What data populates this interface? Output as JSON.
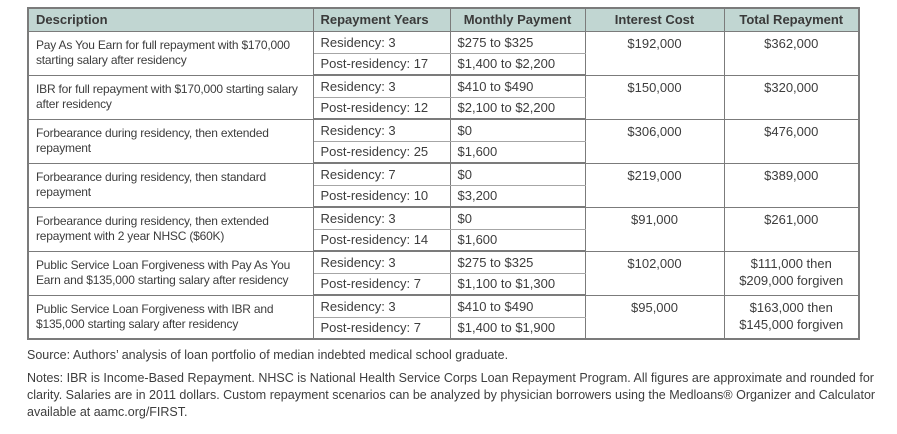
{
  "colors": {
    "header_background": "#c1d6d2",
    "table_border": "#7b7b7b",
    "subrow_divider": "#a6a6a6",
    "text": "#3d3d3d"
  },
  "table": {
    "headers": [
      "Description",
      "Repayment Years",
      "Monthly Payment",
      "Interest Cost",
      "Total Repayment"
    ],
    "rows": [
      {
        "description": "Pay As You Earn for full repayment with $170,000 starting salary after residency",
        "residency_years": "Residency: 3",
        "post_residency_years": "Post-residency: 17",
        "residency_payment": "$275 to $325",
        "post_residency_payment": "$1,400 to $2,200",
        "interest_cost": "$192,000",
        "total_repayment": "$362,000"
      },
      {
        "description": "IBR for full repayment with $170,000 starting salary after residency",
        "residency_years": "Residency: 3",
        "post_residency_years": "Post-residency: 12",
        "residency_payment": "$410 to $490",
        "post_residency_payment": "$2,100 to $2,200",
        "interest_cost": "$150,000",
        "total_repayment": "$320,000"
      },
      {
        "description": "Forbearance during residency, then extended repayment",
        "residency_years": "Residency: 3",
        "post_residency_years": "Post-residency: 25",
        "residency_payment": "$0",
        "post_residency_payment": "$1,600",
        "interest_cost": "$306,000",
        "total_repayment": "$476,000"
      },
      {
        "description": "Forbearance during residency, then standard repayment",
        "residency_years": "Residency: 7",
        "post_residency_years": "Post-residency: 10",
        "residency_payment": "$0",
        "post_residency_payment": "$3,200",
        "interest_cost": "$219,000",
        "total_repayment": "$389,000"
      },
      {
        "description": "Forbearance during residency, then extended repayment with 2 year NHSC ($60K)",
        "residency_years": "Residency: 3",
        "post_residency_years": "Post-residency: 14",
        "residency_payment": "$0",
        "post_residency_payment": "$1,600",
        "interest_cost": "$91,000",
        "total_repayment": "$261,000"
      },
      {
        "description": "Public Service Loan Forgiveness with Pay As You Earn and $135,000 starting salary after residency",
        "residency_years": "Residency: 3",
        "post_residency_years": "Post-residency: 7",
        "residency_payment": "$275 to $325",
        "post_residency_payment": "$1,100 to $1,300",
        "interest_cost": "$102,000",
        "total_repayment": "$111,000 then $209,000 forgiven"
      },
      {
        "description": "Public Service Loan Forgiveness with IBR and $135,000 starting salary after residency",
        "residency_years": "Residency: 3",
        "post_residency_years": "Post-residency: 7",
        "residency_payment": "$410 to $490",
        "post_residency_payment": "$1,400 to $1,900",
        "interest_cost": "$95,000",
        "total_repayment": "$163,000 then $145,000 forgiven"
      }
    ]
  },
  "footer": {
    "source": "Source: Authors’ analysis of loan portfolio of median indebted medical school graduate.",
    "notes": "Notes: IBR is Income-Based Repayment. NHSC is National Health Service Corps Loan Repayment Program. All figures are approximate and rounded for clarity. Salaries are in 2011 dollars. Custom repayment scenarios can be analyzed by physician borrowers using the Medloans® Organizer and Calculator available at aamc.org/FIRST."
  }
}
